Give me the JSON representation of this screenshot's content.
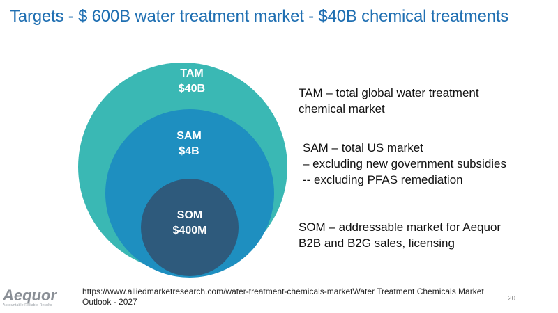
{
  "title": "Targets - $ 600B water treatment market - $40B chemical treatments",
  "circles": [
    {
      "name": "TAM",
      "value": "$40B",
      "color": "#3ab8b4"
    },
    {
      "name": "SAM",
      "value": "$4B",
      "color": "#1e8fc0"
    },
    {
      "name": "SOM",
      "value": "$400M",
      "color": "#2e5a7c"
    }
  ],
  "descriptions": {
    "tam": [
      "TAM – total global water treatment",
      "chemical market"
    ],
    "sam": [
      "SAM – total US market",
      "– excluding new government subsidies",
      "--  excluding PFAS remediation"
    ],
    "som": [
      "SOM – addressable market for Aequor",
      "B2B and B2G sales, licensing"
    ]
  },
  "footnote": "https://www.alliedmarketresearch.com/water-treatment-chemicals-marketWater Treatment Chemicals Market Outlook - 2027",
  "page_number": "20",
  "logo": {
    "word": "Aequor",
    "tagline": "Accountable Reliable Results"
  },
  "colors": {
    "title": "#1f6fb2",
    "logo": "#8a8f96"
  }
}
